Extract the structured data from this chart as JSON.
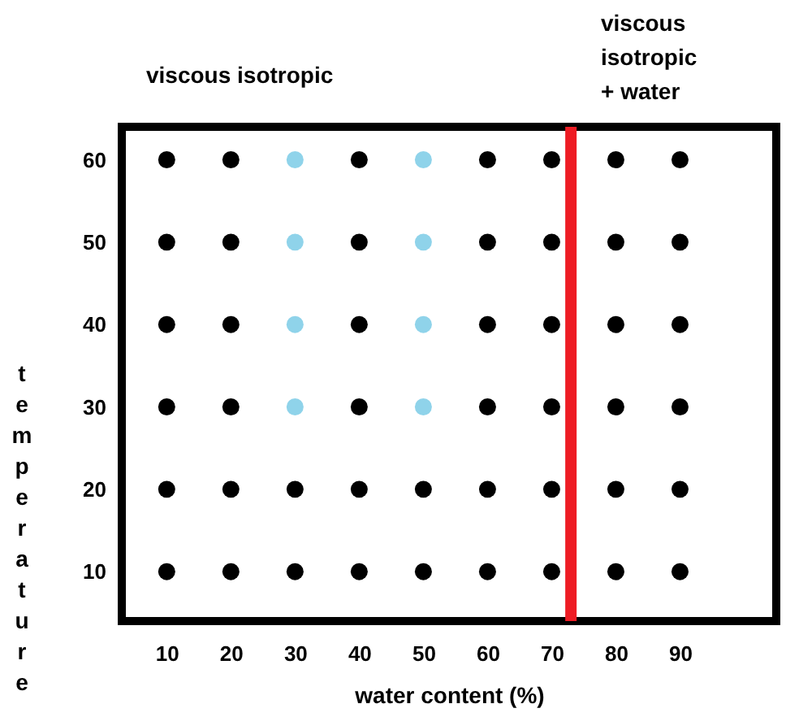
{
  "chart_data": {
    "type": "scatter",
    "xlabel": "water content (%)",
    "ylabel": "temperature",
    "xlim": [
      3,
      105
    ],
    "ylim": [
      4,
      64
    ],
    "xticks": [
      10,
      20,
      30,
      40,
      50,
      60,
      70,
      80,
      90
    ],
    "yticks": [
      10,
      20,
      30,
      40,
      50,
      60
    ],
    "marker": "circle",
    "grid": false,
    "series": [
      {
        "color": "#000000",
        "x": [
          10,
          20,
          30,
          40,
          50,
          60,
          70,
          80,
          90,
          10,
          20,
          30,
          40,
          50,
          60,
          70,
          80,
          90,
          10,
          20,
          40,
          60,
          70,
          80,
          90,
          10,
          20,
          40,
          60,
          70,
          80,
          90,
          10,
          20,
          40,
          60,
          70,
          80,
          90,
          10,
          20,
          40,
          60,
          70,
          80,
          90
        ],
        "values": [
          10,
          10,
          10,
          10,
          10,
          10,
          10,
          10,
          10,
          20,
          20,
          20,
          20,
          20,
          20,
          20,
          20,
          20,
          30,
          30,
          30,
          30,
          30,
          30,
          30,
          40,
          40,
          40,
          40,
          40,
          40,
          40,
          50,
          50,
          50,
          50,
          50,
          50,
          50,
          60,
          60,
          60,
          60,
          60,
          60,
          60
        ]
      },
      {
        "color": "#8fd3ea",
        "x": [
          30,
          50,
          30,
          50,
          30,
          50,
          30,
          50
        ],
        "values": [
          30,
          30,
          40,
          40,
          50,
          50,
          60,
          60
        ]
      }
    ],
    "ref_lines": [
      {
        "axis": "x",
        "value": 73,
        "color": "#ee1c24"
      }
    ],
    "annotations": [
      "viscous isotropic",
      "viscous isotropic + water"
    ]
  }
}
